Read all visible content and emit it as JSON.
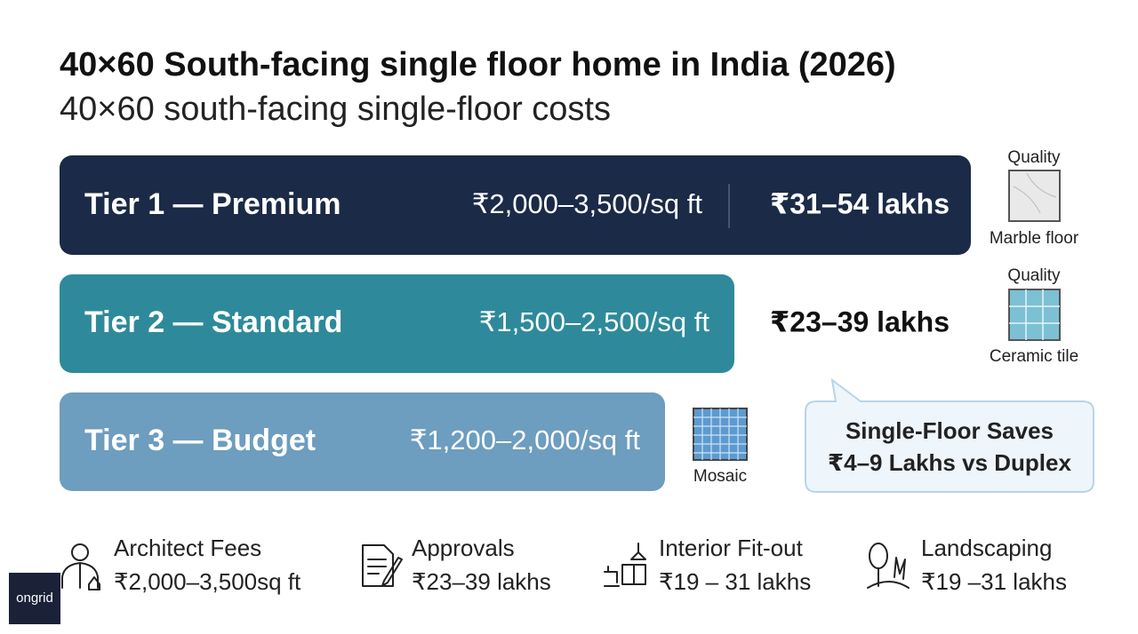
{
  "header": {
    "title": "40×60 South-facing single floor home in India (2026)",
    "subtitle": "40×60 south-facing single-floor costs"
  },
  "tiers": [
    {
      "label": "Tier 1 — Premium",
      "rate": "₹2,000–3,500/sq ft",
      "total": "₹31–54 lakhs",
      "quality": "Quality",
      "material": "Marble floor"
    },
    {
      "label": "Tier 2 — Standard",
      "rate": "₹1,500–2,500/sq ft",
      "total": "₹23–39 lakhs",
      "quality": "Quality",
      "material": "Ceramic tile"
    },
    {
      "label": "Tier 3 — Budget",
      "rate": "₹1,200–2,000/sq ft",
      "material": "Mosaic"
    }
  ],
  "callout": {
    "lines": [
      "Single-Floor Saves",
      "₹4–9 Lakhs vs Duplex"
    ]
  },
  "extras": [
    {
      "title": "Architect Fees",
      "value": "₹2,000–3,500sq ft"
    },
    {
      "title": "Approvals",
      "value": "₹23–39 lakhs"
    },
    {
      "title": "Interior Fit-out",
      "value": "₹19 – 31 lakhs"
    },
    {
      "title": "Landscaping",
      "value": "₹19 –31 lakhs"
    }
  ],
  "logo": "ongrid"
}
